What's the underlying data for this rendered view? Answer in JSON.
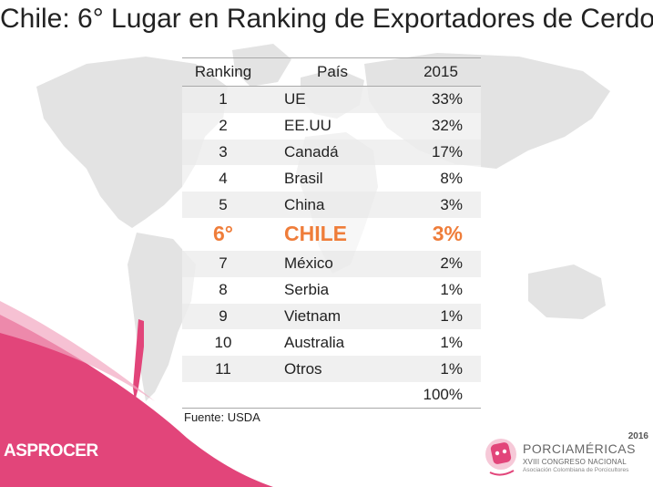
{
  "title": "Chile: 6° Lugar en Ranking de Exportadores de Cerdo",
  "table": {
    "headers": [
      "Ranking",
      "País",
      "2015"
    ],
    "rows": [
      {
        "rank": "1",
        "country": "UE",
        "share": "33%"
      },
      {
        "rank": "2",
        "country": "EE.UU",
        "share": "32%"
      },
      {
        "rank": "3",
        "country": "Canadá",
        "share": "17%"
      },
      {
        "rank": "4",
        "country": "Brasil",
        "share": "8%"
      },
      {
        "rank": "5",
        "country": "China",
        "share": "3%"
      },
      {
        "rank": "6°",
        "country": "CHILE",
        "share": "3%"
      },
      {
        "rank": "7",
        "country": "México",
        "share": "2%"
      },
      {
        "rank": "8",
        "country": "Serbia",
        "share": "1%"
      },
      {
        "rank": "9",
        "country": "Vietnam",
        "share": "1%"
      },
      {
        "rank": "10",
        "country": "Australia",
        "share": "1%"
      },
      {
        "rank": "11",
        "country": "Otros",
        "share": "1%"
      }
    ],
    "total": "100%"
  },
  "source": "Fuente: USDA",
  "brand_left": "ASPROCER",
  "event": {
    "year": "2016",
    "name": "PORCIAMÉRICAS",
    "subtitle": "XVIII CONGRESO NACIONAL",
    "org": "Asociación Colombiana de Porcicultores"
  },
  "colors": {
    "highlight": "#ef7d3a",
    "pink_brand": "#e2457a",
    "map": "#dcdcdc"
  }
}
